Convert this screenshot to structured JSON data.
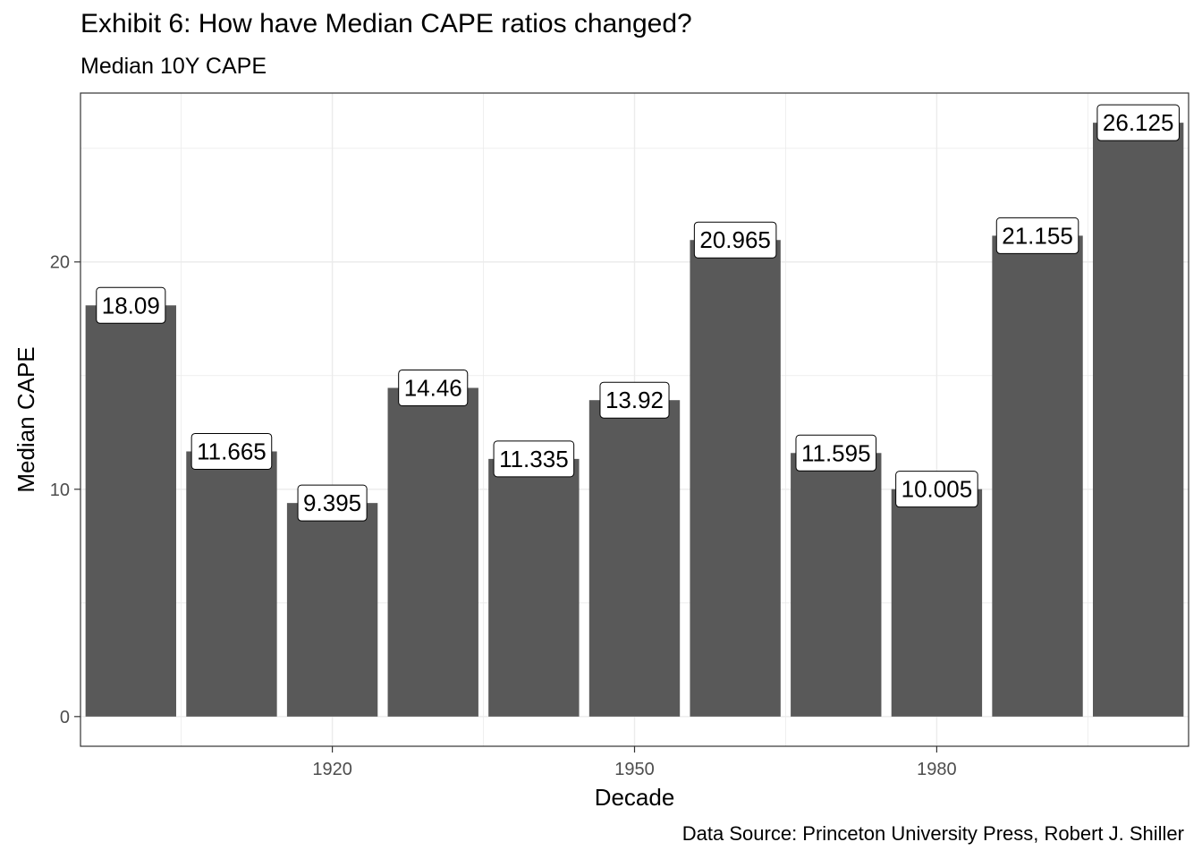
{
  "title": "Exhibit 6: How have Median CAPE ratios changed?",
  "subtitle": "Median 10Y CAPE",
  "caption": "Data Source: Princeton University Press, Robert J. Shiller",
  "chart_data": {
    "type": "bar",
    "title": "Exhibit 6: How have Median CAPE ratios changed?",
    "subtitle": "Median 10Y CAPE",
    "xlabel": "Decade",
    "ylabel": "Median CAPE",
    "x": [
      1900,
      1910,
      1920,
      1930,
      1940,
      1950,
      1960,
      1970,
      1980,
      1990,
      2000
    ],
    "values": [
      18.09,
      11.665,
      9.395,
      14.46,
      11.335,
      13.92,
      20.965,
      11.595,
      10.005,
      21.155,
      26.125
    ],
    "data_labels": [
      "18.09",
      "11.665",
      "9.395",
      "14.46",
      "11.335",
      "13.92",
      "20.965",
      "11.595",
      "10.005",
      "21.155",
      "26.125"
    ],
    "x_ticks": [
      1920,
      1950,
      1980
    ],
    "y_ticks": [
      0,
      10,
      20
    ],
    "xlim": [
      1895,
      2005
    ],
    "ylim": [
      -1.306,
      27.43
    ],
    "grid": true,
    "bar_color": "#595959",
    "gridline_color": "#ebebeb",
    "panel_border_color": "#333333",
    "label_fill": "#ffffff"
  }
}
